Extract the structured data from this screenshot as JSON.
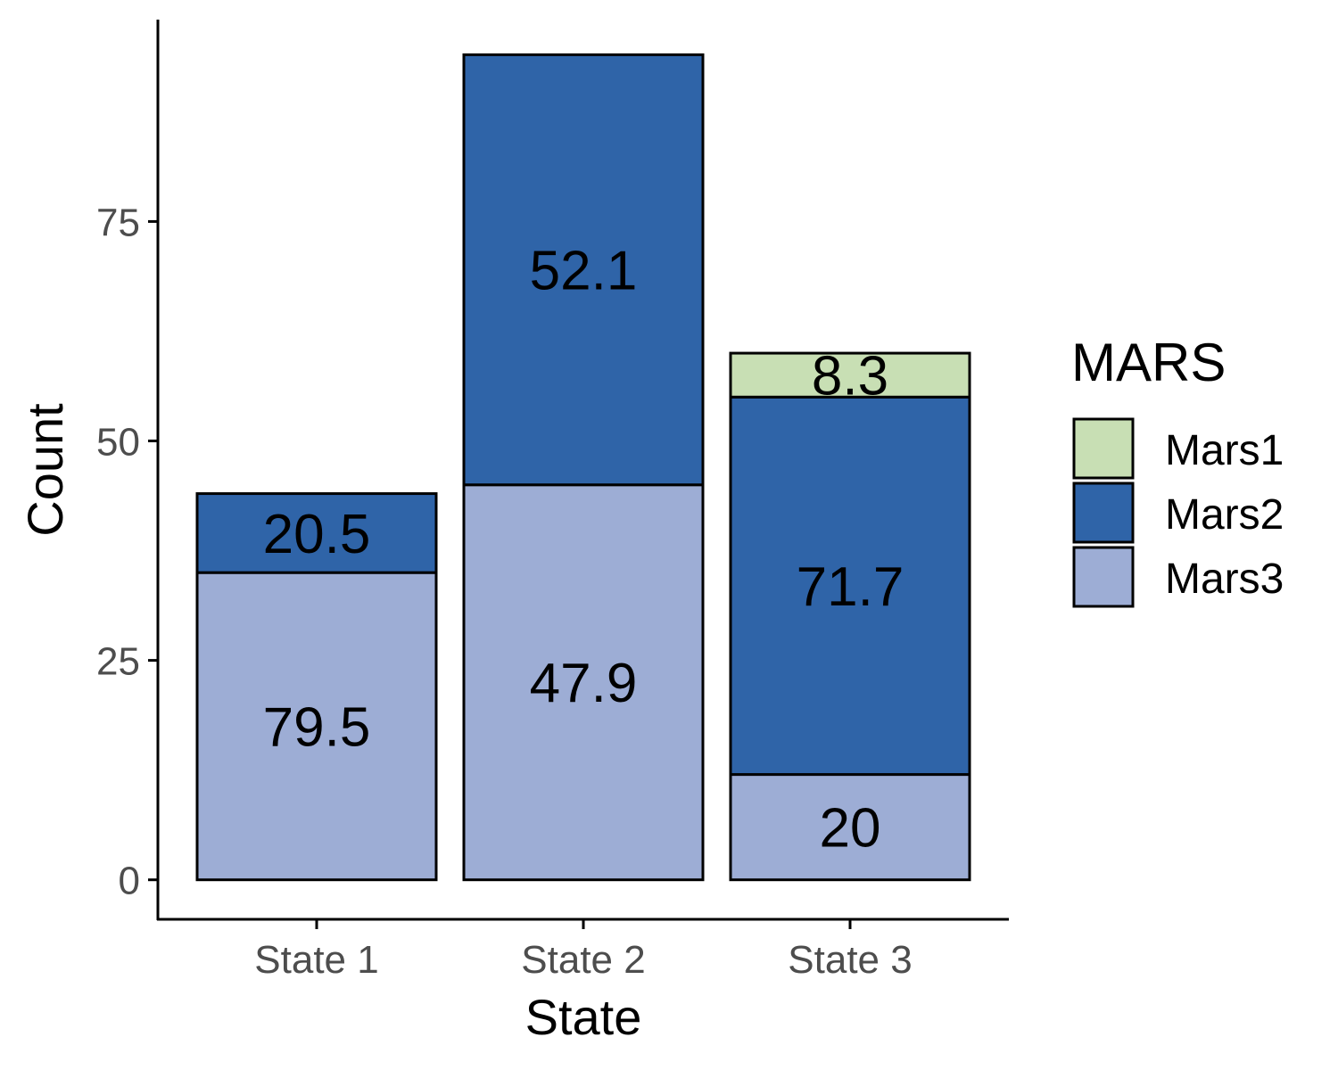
{
  "chart_data": {
    "type": "bar",
    "stacked": true,
    "categories": [
      "State 1",
      "State 2",
      "State 3"
    ],
    "series": [
      {
        "name": "Mars3",
        "color": "#9dadd5",
        "values": [
          35,
          45,
          12
        ],
        "labels": [
          "79.5",
          "47.9",
          "20"
        ]
      },
      {
        "name": "Mars2",
        "color": "#2f64a8",
        "values": [
          9,
          49,
          43
        ],
        "labels": [
          "20.5",
          "52.1",
          "71.7"
        ]
      },
      {
        "name": "Mars1",
        "color": "#c8dfb4",
        "values": [
          null,
          null,
          5
        ],
        "labels": [
          "",
          "",
          "8.3"
        ]
      }
    ],
    "xlabel": "State",
    "ylabel": "Count",
    "ylim": [
      -4.5,
      98
    ],
    "yticks": [
      0,
      25,
      50,
      75
    ],
    "ytick_labels": [
      "0",
      "25",
      "50",
      "75"
    ],
    "grid": false,
    "legend": {
      "title": "MARS",
      "position": "right",
      "entries": [
        "Mars1",
        "Mars2",
        "Mars3"
      ]
    }
  }
}
